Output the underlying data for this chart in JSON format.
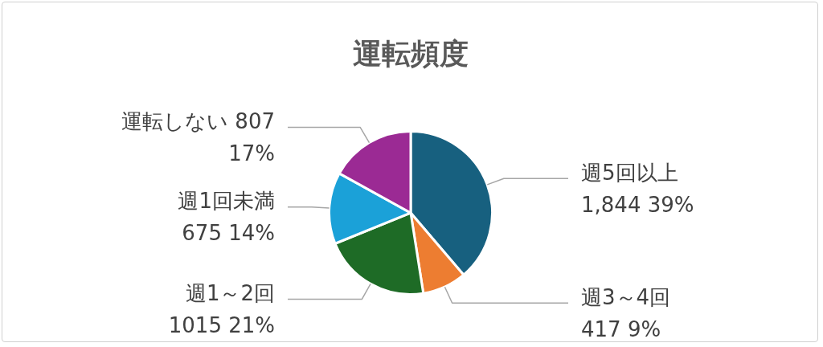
{
  "chart_data": {
    "type": "pie",
    "title": "運転頻度",
    "categories": [
      "週5回以上",
      "週3～4回",
      "週1～2回",
      "週1回未満",
      "運転しない"
    ],
    "values": [
      1844,
      417,
      1015,
      675,
      807
    ],
    "colors": [
      "#17607f",
      "#ed7d31",
      "#1e6b26",
      "#1ba1d8",
      "#9b2a94"
    ],
    "value_labels": [
      "1,844 39%",
      "417 9%",
      "1015 21%",
      "675 14%",
      "807\n17%"
    ],
    "legend": false
  }
}
